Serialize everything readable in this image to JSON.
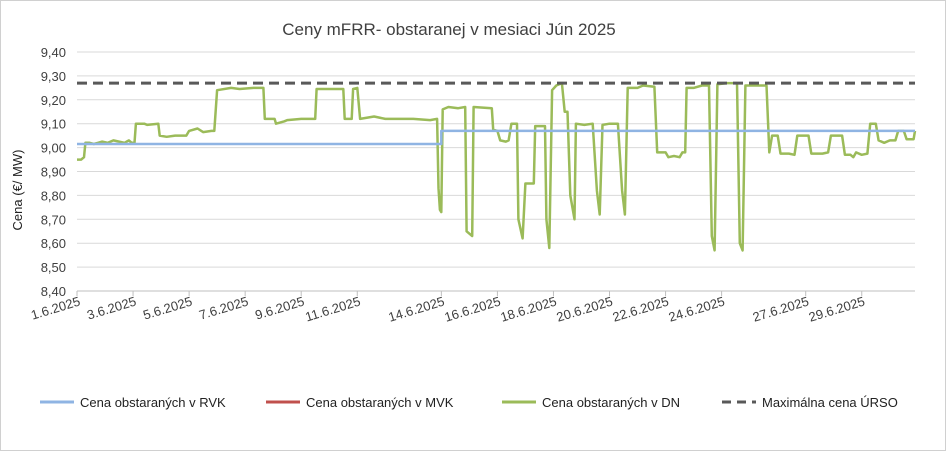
{
  "chart_data": {
    "type": "line",
    "title": "Ceny mFRR- obstaranej v mesiaci Jún 2025",
    "xlabel": "",
    "ylabel": "Cena (€/ MW)",
    "ylim": [
      8.4,
      9.4
    ],
    "yticks": [
      "9,40",
      "9,30",
      "9,20",
      "9,10",
      "9,00",
      "8,90",
      "8,80",
      "8,70",
      "8,60",
      "8,50",
      "8,40"
    ],
    "x_tick_labels": [
      "1.6.2025",
      "3.6.2025",
      "5.6.2025",
      "7.6.2025",
      "9.6.2025",
      "11.6.2025",
      "14.6.2025",
      "16.6.2025",
      "18.6.2025",
      "20.6.2025",
      "22.6.2025",
      "24.6.2025",
      "27.6.2025",
      "29.6.2025"
    ],
    "x_tick_days": [
      1,
      3,
      5,
      7,
      9,
      11,
      14,
      16,
      18,
      20,
      22,
      24,
      27,
      29
    ],
    "x_range_days": [
      1,
      30.9
    ],
    "grid": true,
    "legend": "bottom",
    "series": [
      {
        "name": "Cena obstaraných v RVK",
        "color": "#8FB4E3",
        "points": [
          [
            1,
            9.015
          ],
          [
            14.0,
            9.015
          ],
          [
            14.0,
            9.07
          ],
          [
            30.9,
            9.07
          ]
        ]
      },
      {
        "name": "Cena obstaraných v MVK",
        "color": "#C0504D",
        "points": []
      },
      {
        "name": "Cena obstaraných v DN",
        "color": "#9BBB59",
        "points": [
          [
            1.0,
            8.95
          ],
          [
            1.15,
            8.95
          ],
          [
            1.25,
            8.96
          ],
          [
            1.3,
            9.02
          ],
          [
            1.45,
            9.02
          ],
          [
            1.6,
            9.015
          ],
          [
            1.75,
            9.02
          ],
          [
            1.9,
            9.025
          ],
          [
            2.1,
            9.02
          ],
          [
            2.3,
            9.03
          ],
          [
            2.5,
            9.025
          ],
          [
            2.7,
            9.02
          ],
          [
            2.85,
            9.03
          ],
          [
            2.95,
            9.02
          ],
          [
            3.05,
            9.02
          ],
          [
            3.1,
            9.1
          ],
          [
            3.4,
            9.1
          ],
          [
            3.5,
            9.095
          ],
          [
            3.9,
            9.1
          ],
          [
            3.95,
            9.05
          ],
          [
            4.2,
            9.045
          ],
          [
            4.5,
            9.05
          ],
          [
            4.9,
            9.05
          ],
          [
            5.0,
            9.07
          ],
          [
            5.3,
            9.08
          ],
          [
            5.5,
            9.065
          ],
          [
            5.8,
            9.07
          ],
          [
            5.9,
            9.07
          ],
          [
            6.0,
            9.24
          ],
          [
            6.5,
            9.25
          ],
          [
            6.8,
            9.245
          ],
          [
            7.3,
            9.25
          ],
          [
            7.65,
            9.25
          ],
          [
            7.7,
            9.12
          ],
          [
            8.05,
            9.12
          ],
          [
            8.1,
            9.1
          ],
          [
            8.4,
            9.11
          ],
          [
            8.5,
            9.115
          ],
          [
            9.0,
            9.12
          ],
          [
            9.5,
            9.12
          ],
          [
            9.55,
            9.245
          ],
          [
            10.5,
            9.245
          ],
          [
            10.55,
            9.12
          ],
          [
            10.8,
            9.12
          ],
          [
            10.85,
            9.245
          ],
          [
            11.0,
            9.25
          ],
          [
            11.1,
            9.12
          ],
          [
            11.6,
            9.13
          ],
          [
            12.0,
            9.12
          ],
          [
            13.0,
            9.12
          ],
          [
            13.6,
            9.115
          ],
          [
            13.85,
            9.12
          ],
          [
            13.9,
            8.83
          ],
          [
            13.95,
            8.74
          ],
          [
            14.0,
            8.73
          ],
          [
            14.05,
            9.16
          ],
          [
            14.25,
            9.17
          ],
          [
            14.6,
            9.165
          ],
          [
            14.85,
            9.17
          ],
          [
            14.9,
            8.65
          ],
          [
            15.1,
            8.63
          ],
          [
            15.15,
            9.17
          ],
          [
            15.8,
            9.165
          ],
          [
            15.85,
            9.075
          ],
          [
            16.0,
            9.07
          ],
          [
            16.1,
            9.03
          ],
          [
            16.3,
            9.025
          ],
          [
            16.4,
            9.03
          ],
          [
            16.5,
            9.1
          ],
          [
            16.7,
            9.1
          ],
          [
            16.75,
            8.7
          ],
          [
            16.9,
            8.62
          ],
          [
            17.0,
            8.85
          ],
          [
            17.3,
            8.85
          ],
          [
            17.35,
            9.09
          ],
          [
            17.7,
            9.09
          ],
          [
            17.75,
            8.7
          ],
          [
            17.85,
            8.58
          ],
          [
            17.95,
            9.24
          ],
          [
            18.1,
            9.26
          ],
          [
            18.3,
            9.27
          ],
          [
            18.4,
            9.15
          ],
          [
            18.5,
            9.15
          ],
          [
            18.6,
            8.8
          ],
          [
            18.75,
            8.7
          ],
          [
            18.8,
            9.1
          ],
          [
            19.1,
            9.095
          ],
          [
            19.4,
            9.1
          ],
          [
            19.55,
            8.82
          ],
          [
            19.65,
            8.72
          ],
          [
            19.75,
            9.095
          ],
          [
            20.0,
            9.1
          ],
          [
            20.3,
            9.1
          ],
          [
            20.45,
            8.82
          ],
          [
            20.55,
            8.72
          ],
          [
            20.65,
            9.25
          ],
          [
            21.0,
            9.25
          ],
          [
            21.2,
            9.26
          ],
          [
            21.6,
            9.255
          ],
          [
            21.7,
            8.98
          ],
          [
            22.0,
            8.98
          ],
          [
            22.1,
            8.96
          ],
          [
            22.3,
            8.965
          ],
          [
            22.5,
            8.96
          ],
          [
            22.6,
            8.98
          ],
          [
            22.7,
            8.98
          ],
          [
            22.75,
            9.25
          ],
          [
            23.0,
            9.25
          ],
          [
            23.3,
            9.26
          ],
          [
            23.55,
            9.26
          ],
          [
            23.65,
            8.63
          ],
          [
            23.75,
            8.57
          ],
          [
            23.85,
            9.265
          ],
          [
            24.2,
            9.27
          ],
          [
            24.55,
            9.27
          ],
          [
            24.65,
            8.6
          ],
          [
            24.75,
            8.57
          ],
          [
            24.85,
            9.26
          ],
          [
            25.3,
            9.26
          ],
          [
            25.6,
            9.26
          ],
          [
            25.7,
            8.98
          ],
          [
            25.8,
            9.05
          ],
          [
            26.0,
            9.05
          ],
          [
            26.1,
            8.975
          ],
          [
            26.4,
            8.975
          ],
          [
            26.6,
            8.97
          ],
          [
            26.7,
            9.05
          ],
          [
            27.1,
            9.05
          ],
          [
            27.2,
            8.975
          ],
          [
            27.6,
            8.975
          ],
          [
            27.8,
            8.98
          ],
          [
            27.9,
            9.05
          ],
          [
            28.3,
            9.05
          ],
          [
            28.4,
            8.97
          ],
          [
            28.6,
            8.97
          ],
          [
            28.7,
            8.96
          ],
          [
            28.8,
            8.98
          ],
          [
            29.0,
            8.97
          ],
          [
            29.2,
            8.975
          ],
          [
            29.3,
            9.1
          ],
          [
            29.5,
            9.1
          ],
          [
            29.6,
            9.03
          ],
          [
            29.8,
            9.02
          ],
          [
            30.0,
            9.03
          ],
          [
            30.2,
            9.03
          ],
          [
            30.3,
            9.07
          ],
          [
            30.5,
            9.07
          ],
          [
            30.6,
            9.035
          ],
          [
            30.85,
            9.035
          ],
          [
            30.9,
            9.07
          ]
        ]
      },
      {
        "name": "Maximálna cena ÚRSO",
        "color": "#595959",
        "dashed": true,
        "points": [
          [
            1,
            9.27
          ],
          [
            30.9,
            9.27
          ]
        ]
      }
    ]
  }
}
